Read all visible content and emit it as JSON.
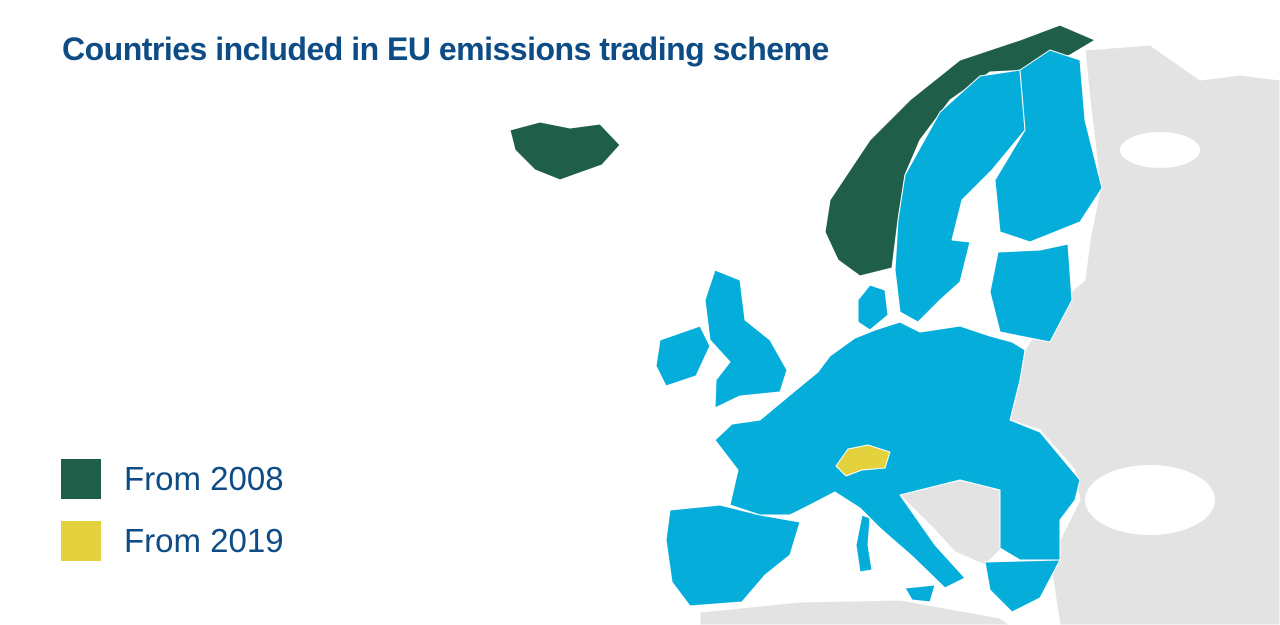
{
  "title": "Countries included in EU emissions trading scheme",
  "legend": [
    {
      "label": "From 2008",
      "color": "#1F5F4A"
    },
    {
      "label": "From 2019",
      "color": "#E3D23E"
    }
  ],
  "colors": {
    "eu_members": "#05AEDA",
    "from_2008": "#1F5F4A",
    "from_2019": "#E3D23E",
    "non_participating": "#E3E3E3",
    "title_text": "#0E4C85"
  }
}
